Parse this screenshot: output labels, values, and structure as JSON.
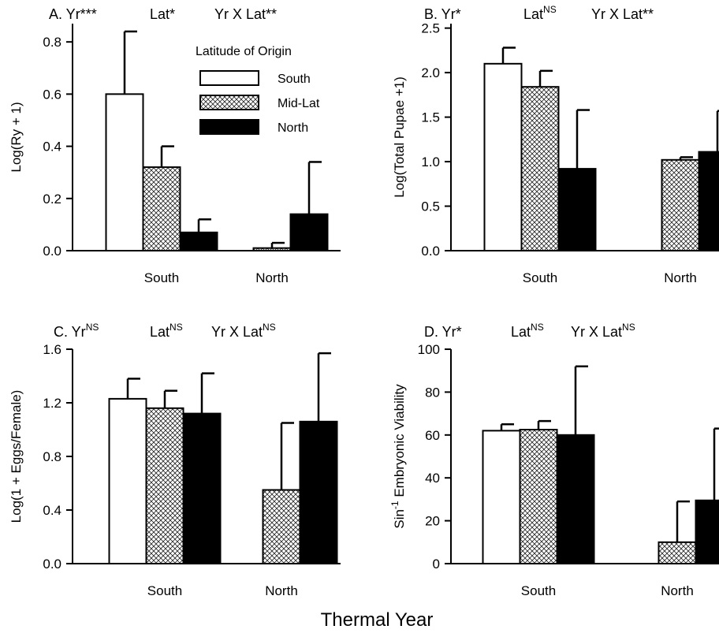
{
  "figure": {
    "xlabel": "Thermal Year"
  },
  "chart_data": [
    {
      "type": "bar",
      "panel": "A",
      "title_parts": [
        {
          "text": "A.  Yr***"
        },
        {
          "text": "Lat*"
        },
        {
          "text": "Yr X Lat**"
        }
      ],
      "ylabel": "Log(Ry + 1)",
      "ylim": [
        0,
        0.87
      ],
      "yticks": [
        0.0,
        0.2,
        0.4,
        0.6,
        0.8
      ],
      "ytick_labels": [
        "0.0",
        "0.2",
        "0.4",
        "0.6",
        "0.8"
      ],
      "categories": [
        "South",
        "North"
      ],
      "series": [
        {
          "name": "South",
          "values": [
            0.6,
            0.0
          ],
          "errors": [
            0.24,
            0.0
          ]
        },
        {
          "name": "Mid-Lat",
          "values": [
            0.32,
            0.01
          ],
          "errors": [
            0.08,
            0.02
          ]
        },
        {
          "name": "North",
          "values": [
            0.07,
            0.14
          ],
          "errors": [
            0.05,
            0.2
          ]
        }
      ],
      "legend": {
        "title": "Latitude of Origin",
        "position": "top-right",
        "entries": [
          "South",
          "Mid-Lat",
          "North"
        ]
      }
    },
    {
      "type": "bar",
      "panel": "B",
      "title_parts": [
        {
          "text": "B.  Yr*"
        },
        {
          "text": "Lat",
          "sup": "NS"
        },
        {
          "text": "Yr X Lat**"
        }
      ],
      "ylabel": "Log(Total Pupae +1)",
      "ylim": [
        0,
        2.55
      ],
      "yticks": [
        0.0,
        0.5,
        1.0,
        1.5,
        2.0,
        2.5
      ],
      "ytick_labels": [
        "0.0",
        "0.5",
        "1.0",
        "1.5",
        "2.0",
        "2.5"
      ],
      "categories": [
        "South",
        "North"
      ],
      "series": [
        {
          "name": "South",
          "values": [
            2.1,
            0.0
          ],
          "errors": [
            0.18,
            0.0
          ]
        },
        {
          "name": "Mid-Lat",
          "values": [
            1.84,
            1.02
          ],
          "errors": [
            0.18,
            0.03
          ]
        },
        {
          "name": "North",
          "values": [
            0.92,
            1.11
          ],
          "errors": [
            0.66,
            0.46
          ]
        }
      ]
    },
    {
      "type": "bar",
      "panel": "C",
      "title_parts": [
        {
          "text": "C.  Yr",
          "sup": "NS"
        },
        {
          "text": "Lat",
          "sup": "NS"
        },
        {
          "text": "Yr X Lat",
          "sup": "NS"
        }
      ],
      "ylabel": "Log(1 + Eggs/Female)",
      "ylim": [
        0,
        1.6
      ],
      "yticks": [
        0.0,
        0.4,
        0.8,
        1.2,
        1.6
      ],
      "ytick_labels": [
        "0.0",
        "0.4",
        "0.8",
        "1.2",
        "1.6"
      ],
      "categories": [
        "South",
        "North"
      ],
      "series": [
        {
          "name": "South",
          "values": [
            1.23,
            null
          ],
          "errors": [
            0.15,
            null
          ]
        },
        {
          "name": "Mid-Lat",
          "values": [
            1.16,
            0.55
          ],
          "errors": [
            0.13,
            0.5
          ]
        },
        {
          "name": "North",
          "values": [
            1.12,
            1.06
          ],
          "errors": [
            0.3,
            0.51
          ]
        }
      ]
    },
    {
      "type": "bar",
      "panel": "D",
      "title_parts": [
        {
          "text": "D.  Yr*"
        },
        {
          "text": "Lat",
          "sup": "NS"
        },
        {
          "text": "Yr X Lat",
          "sup": "NS"
        }
      ],
      "ylabel": "Sin",
      "ylabel_sup": "-1",
      "ylabel_rest": " Embryonic Viability",
      "ylim": [
        0,
        100
      ],
      "yticks": [
        0,
        20,
        40,
        60,
        80,
        100
      ],
      "ytick_labels": [
        "0",
        "20",
        "40",
        "60",
        "80",
        "100"
      ],
      "categories": [
        "South",
        "North"
      ],
      "series": [
        {
          "name": "South",
          "values": [
            62,
            null
          ],
          "errors": [
            3,
            null
          ]
        },
        {
          "name": "Mid-Lat",
          "values": [
            62.5,
            10
          ],
          "errors": [
            4,
            19
          ]
        },
        {
          "name": "North",
          "values": [
            60,
            29.5
          ],
          "errors": [
            32,
            33.5
          ]
        }
      ]
    }
  ]
}
